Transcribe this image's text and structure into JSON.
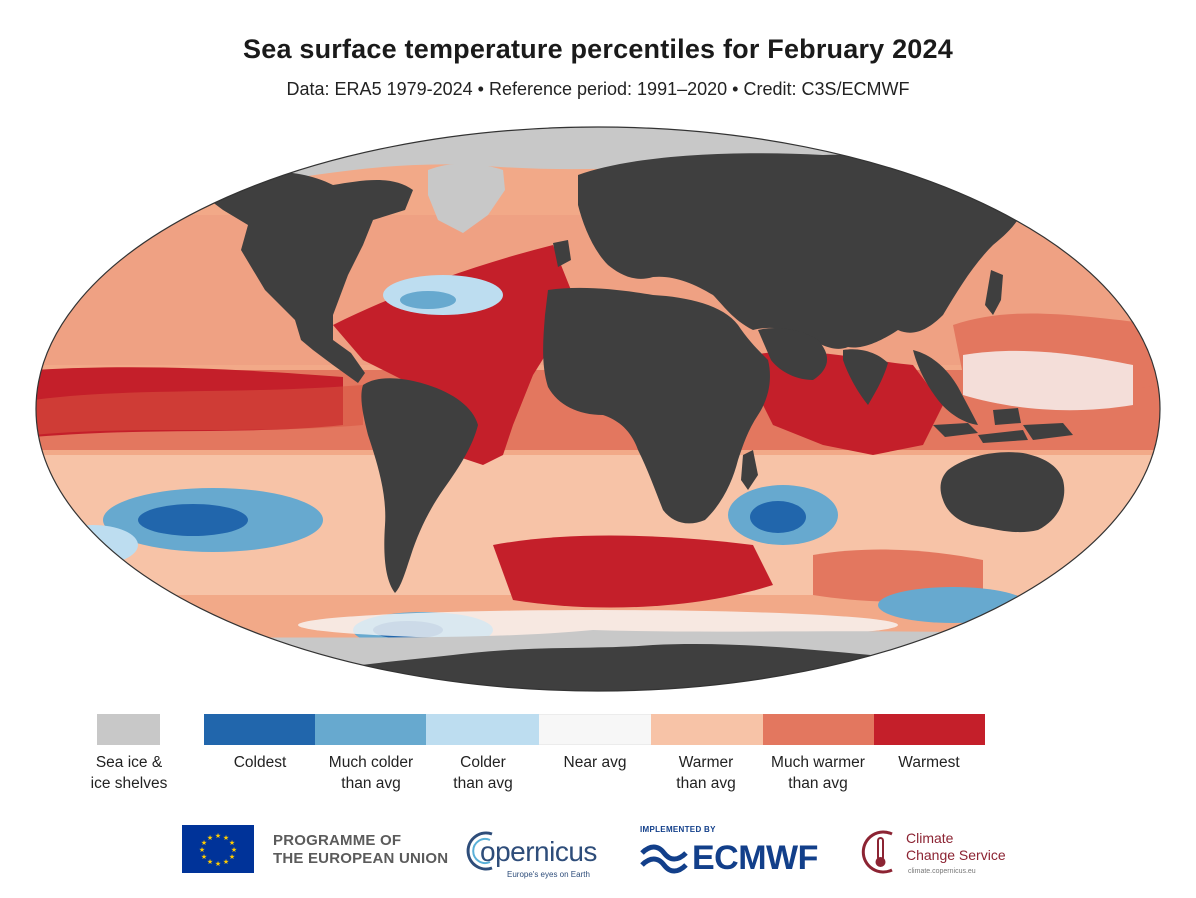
{
  "title": "Sea surface temperature percentiles for February 2024",
  "subtitle": "Data: ERA5 1979-2024 • Reference period: 1991–2020 • Credit: C3S/ECMWF",
  "colors": {
    "land": "#3f3f3f",
    "sea_ice": "#c8c8c8",
    "coldest": "#2166ac",
    "much_colder": "#67a9cf",
    "colder": "#bdddf0",
    "near_avg": "#f7f7f7",
    "warmer": "#f7c3a7",
    "much_warmer": "#e3775f",
    "warmest": "#c41f2a"
  },
  "legend": {
    "sea_ice": "Sea ice &\nice shelves",
    "categories": [
      {
        "label": "Coldest",
        "color": "#2166ac"
      },
      {
        "label": "Much colder\nthan avg",
        "color": "#67a9cf"
      },
      {
        "label": "Colder\nthan avg",
        "color": "#bdddf0"
      },
      {
        "label": "Near avg",
        "color": "#f7f7f7"
      },
      {
        "label": "Warmer\nthan avg",
        "color": "#f7c3a7"
      },
      {
        "label": "Much warmer\nthan avg",
        "color": "#e3775f"
      },
      {
        "label": "Warmest",
        "color": "#c41f2a"
      }
    ]
  },
  "logos": {
    "eu": "PROGRAMME OF\nTHE EUROPEAN UNION",
    "copernicus": "opernicus",
    "copernicus_tagline": "Europe's eyes on Earth",
    "ecmwf_implemented": "IMPLEMENTED BY",
    "ecmwf": "ECMWF",
    "c3s": "Climate\nChange Service",
    "c3s_url": "climate.copernicus.eu"
  }
}
